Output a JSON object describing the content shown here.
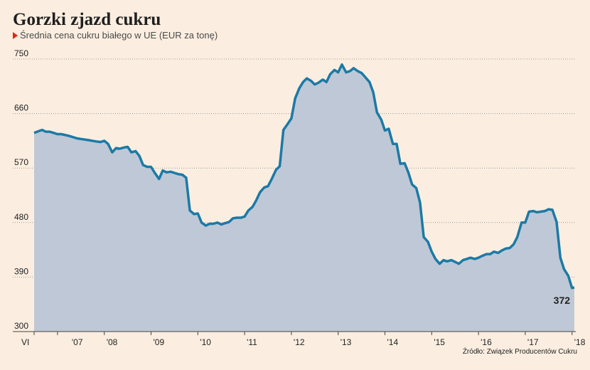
{
  "header": {
    "title": "Gorzki zjazd cukru",
    "subtitle": "Średnia cena cukru białego w UE (EUR za tonę)"
  },
  "footer": {
    "source": "Źródło: Związek Producentów Cukru"
  },
  "colors": {
    "background": "#fbeee0",
    "line": "#1b7aa6",
    "area": "#bfc8d6",
    "grid": "#9a9a9a",
    "marker": "#e2231a"
  },
  "chart_data": {
    "type": "area",
    "title": "Gorzki zjazd cukru",
    "subtitle": "Średnia cena cukru białego w UE (EUR za tonę)",
    "xlabel": "",
    "ylabel": "",
    "ylim": [
      300,
      750
    ],
    "yticks": [
      300,
      390,
      480,
      570,
      660,
      750
    ],
    "grid": "horizontal dotted",
    "x_tick_labels": [
      {
        "label": "VI",
        "x": 2006.5
      },
      {
        "label": "'07",
        "x": 2007.0
      },
      {
        "label": "'08",
        "x": 2008.0
      },
      {
        "label": "'09",
        "x": 2009.0
      },
      {
        "label": "'10",
        "x": 2010.0
      },
      {
        "label": "'11",
        "x": 2011.0
      },
      {
        "label": "'12",
        "x": 2012.0
      },
      {
        "label": "'13",
        "x": 2013.0
      },
      {
        "label": "'14",
        "x": 2014.0
      },
      {
        "label": "'15",
        "x": 2015.0
      },
      {
        "label": "'16",
        "x": 2016.0
      },
      {
        "label": "'17",
        "x": 2017.0
      },
      {
        "label": "'18",
        "x": 2018.0
      }
    ],
    "end_label": "372",
    "series": [
      {
        "x": [
          2006.5,
          2006.6,
          2006.67,
          2006.75,
          2006.83,
          2006.92,
          2007.0,
          2007.08,
          2007.25,
          2007.42,
          2007.5,
          2007.67,
          2007.83,
          2007.92,
          2008.0,
          2008.08,
          2008.17,
          2008.25,
          2008.33,
          2008.42,
          2008.5,
          2008.58,
          2008.67,
          2008.75,
          2008.83,
          2008.92,
          2009.0,
          2009.08,
          2009.17,
          2009.25,
          2009.33,
          2009.42,
          2009.5,
          2009.58,
          2009.67,
          2009.75,
          2009.83,
          2009.92,
          2010.0,
          2010.08,
          2010.17,
          2010.25,
          2010.33,
          2010.42,
          2010.5,
          2010.58,
          2010.67,
          2010.75,
          2010.83,
          2010.92,
          2011.0,
          2011.08,
          2011.17,
          2011.25,
          2011.33,
          2011.42,
          2011.5,
          2011.58,
          2011.67,
          2011.75,
          2011.83,
          2011.92,
          2012.0,
          2012.08,
          2012.17,
          2012.25,
          2012.33,
          2012.42,
          2012.5,
          2012.58,
          2012.67,
          2012.75,
          2012.83,
          2012.92,
          2013.0,
          2013.08,
          2013.17,
          2013.25,
          2013.33,
          2013.42,
          2013.5,
          2013.58,
          2013.67,
          2013.75,
          2013.83,
          2013.92,
          2014.0,
          2014.08,
          2014.17,
          2014.25,
          2014.33,
          2014.42,
          2014.5,
          2014.58,
          2014.67,
          2014.75,
          2014.83,
          2014.92,
          2015.0,
          2015.08,
          2015.17,
          2015.25,
          2015.33,
          2015.42,
          2015.5,
          2015.58,
          2015.67,
          2015.75,
          2015.83,
          2015.92,
          2016.0,
          2016.08,
          2016.17,
          2016.25,
          2016.33,
          2016.42,
          2016.5,
          2016.58,
          2016.67,
          2016.75,
          2016.83,
          2016.92,
          2017.0,
          2017.08,
          2017.17,
          2017.25,
          2017.33,
          2017.42,
          2017.5,
          2017.58,
          2017.67,
          2017.75,
          2017.83,
          2017.92,
          2018.0,
          2018.05
        ],
        "values": [
          628,
          631,
          633,
          630,
          630,
          628,
          626,
          626,
          623,
          619,
          618,
          616,
          614,
          613,
          615,
          610,
          596,
          603,
          602,
          604,
          605,
          596,
          598,
          590,
          575,
          572,
          572,
          562,
          552,
          566,
          563,
          564,
          562,
          560,
          559,
          554,
          500,
          494,
          495,
          480,
          475,
          478,
          478,
          480,
          477,
          479,
          481,
          487,
          488,
          488,
          490,
          500,
          506,
          517,
          530,
          538,
          540,
          552,
          567,
          573,
          633,
          643,
          652,
          685,
          702,
          712,
          718,
          714,
          708,
          711,
          716,
          712,
          725,
          732,
          728,
          741,
          728,
          730,
          735,
          730,
          727,
          720,
          712,
          695,
          662,
          650,
          632,
          635,
          610,
          610,
          577,
          578,
          563,
          543,
          537,
          513,
          456,
          448,
          432,
          420,
          412,
          418,
          416,
          418,
          415,
          412,
          418,
          420,
          422,
          420,
          422,
          425,
          428,
          428,
          432,
          430,
          434,
          437,
          438,
          444,
          456,
          480,
          480,
          498,
          499,
          497,
          498,
          499,
          502,
          501,
          481,
          422,
          403,
          392,
          372,
          373
        ]
      }
    ]
  }
}
